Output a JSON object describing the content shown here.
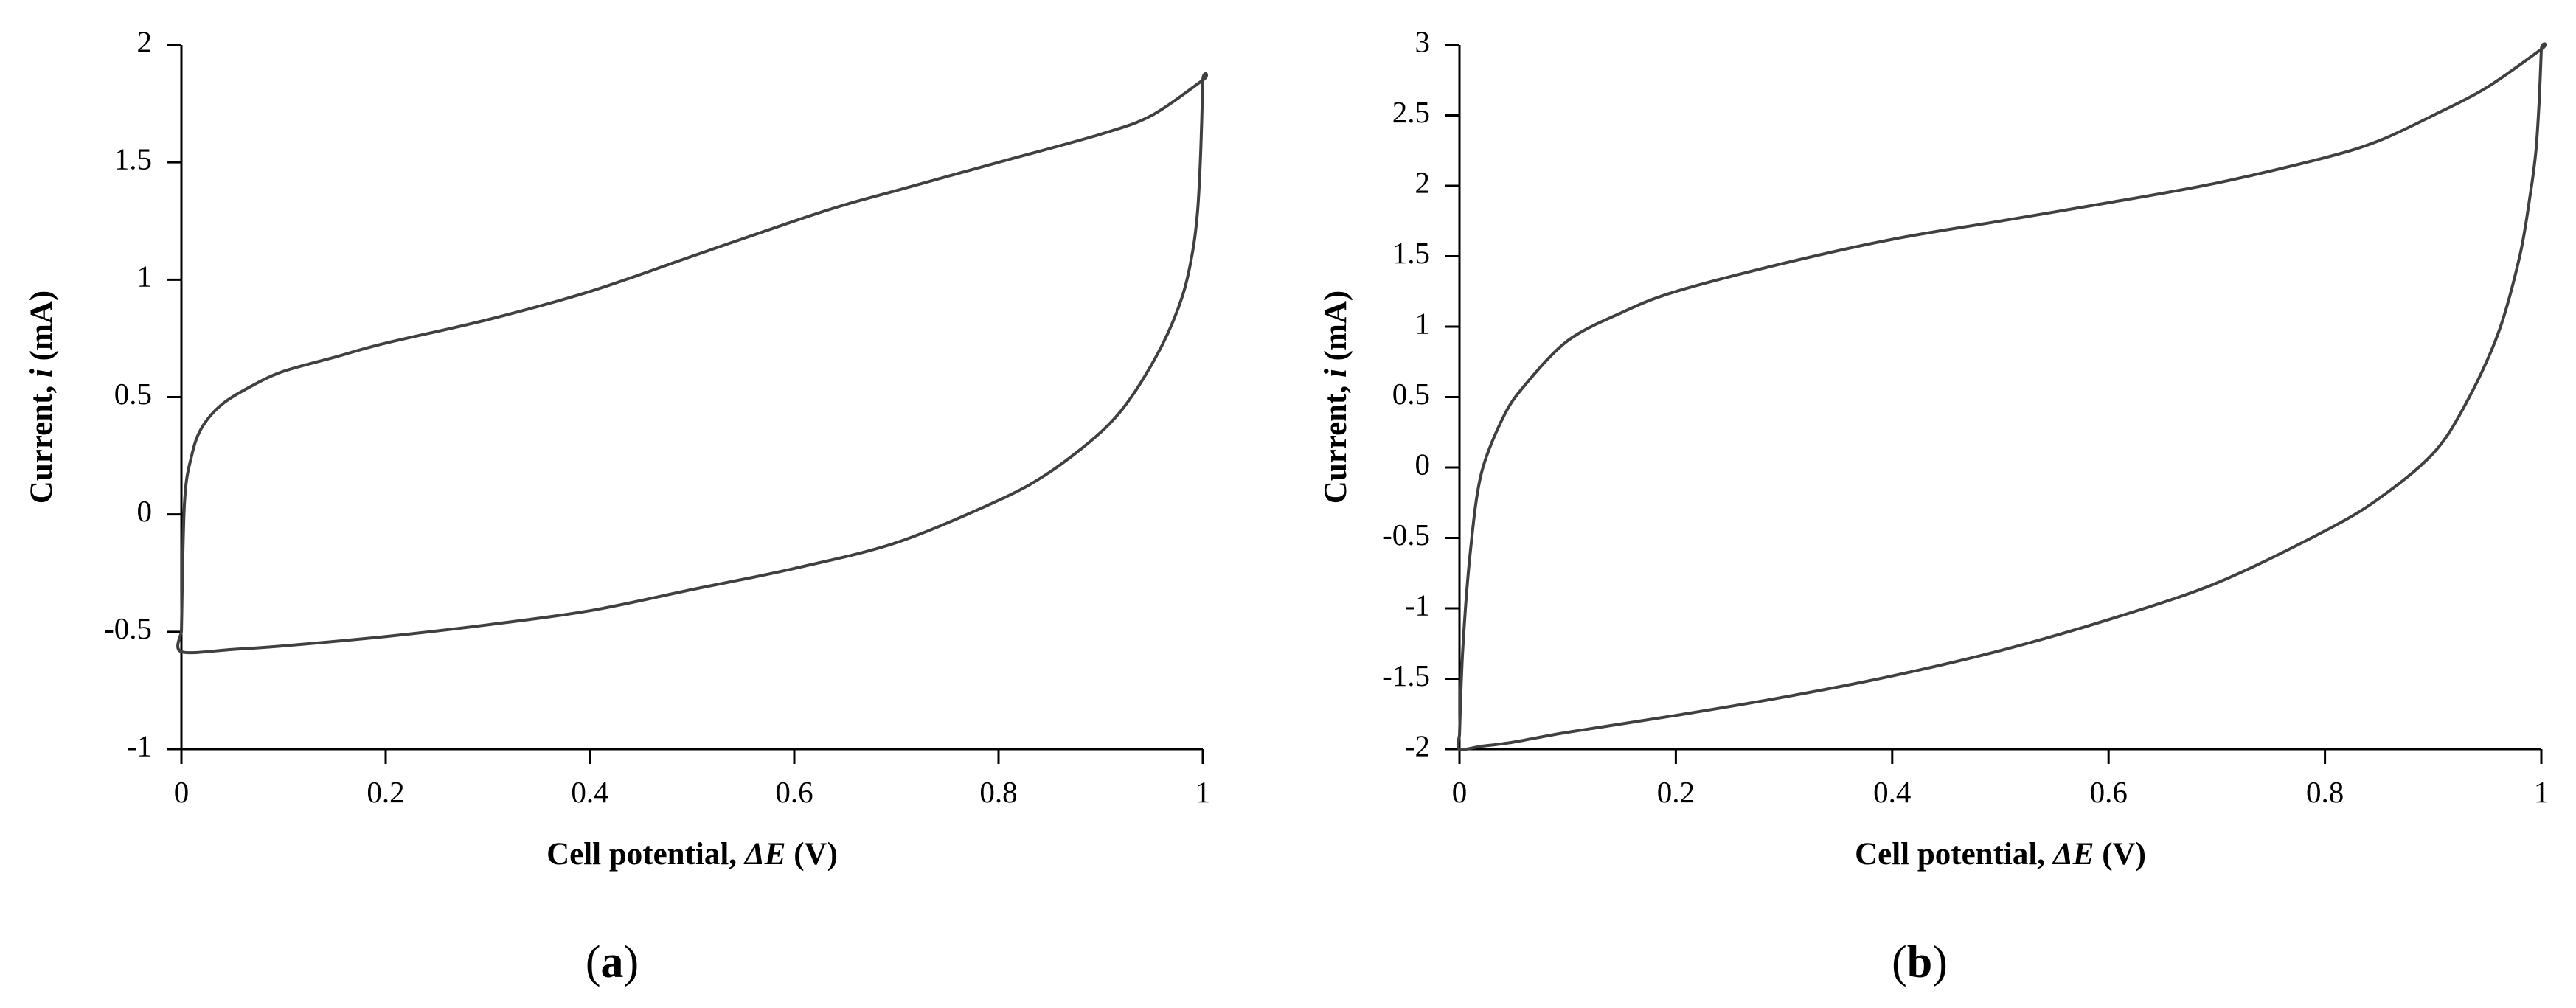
{
  "colors": {
    "curve": "#404040",
    "axis": "#000000",
    "background": "#ffffff"
  },
  "chart_data": [
    {
      "type": "line",
      "panel_label": "(a)",
      "xlabel": "Cell potential, ΔE (V)",
      "ylabel": "Current, i (mA)",
      "xlim": [
        0,
        1
      ],
      "ylim": [
        -1,
        2
      ],
      "xticks": [
        "0",
        "0.2",
        "0.4",
        "0.6",
        "0.8",
        "1"
      ],
      "yticks": [
        "-1",
        "-0.5",
        "0",
        "0.5",
        "1",
        "1.5",
        "2"
      ],
      "grid": false,
      "legend": false,
      "series": [
        {
          "x": [
            0,
            0.003,
            0.01,
            0.02,
            0.04,
            0.07,
            0.1,
            0.15,
            0.2,
            0.3,
            0.4,
            0.5,
            0.6,
            0.65,
            0.7,
            0.8,
            0.9,
            0.95,
            1.0,
            1.0,
            0.998,
            0.995,
            0.99,
            0.98,
            0.96,
            0.93,
            0.9,
            0.85,
            0.8,
            0.7,
            0.6,
            0.5,
            0.4,
            0.3,
            0.2,
            0.1,
            0.05,
            0.0,
            0.0
          ],
          "y": [
            -0.5,
            0.05,
            0.25,
            0.37,
            0.47,
            0.55,
            0.61,
            0.67,
            0.73,
            0.83,
            0.95,
            1.1,
            1.25,
            1.32,
            1.38,
            1.5,
            1.62,
            1.7,
            1.85,
            1.85,
            1.55,
            1.3,
            1.12,
            0.93,
            0.72,
            0.5,
            0.35,
            0.18,
            0.06,
            -0.12,
            -0.23,
            -0.32,
            -0.41,
            -0.47,
            -0.52,
            -0.56,
            -0.575,
            -0.585,
            -0.5
          ]
        }
      ]
    },
    {
      "type": "line",
      "panel_label": "(b)",
      "xlabel": "Cell potential, ΔE (V)",
      "ylabel": "Current, i (mA)",
      "xlim": [
        0,
        1
      ],
      "ylim": [
        -2,
        3
      ],
      "xticks": [
        "0",
        "0.2",
        "0.4",
        "0.6",
        "0.8",
        "1"
      ],
      "yticks": [
        "-2",
        "-1.5",
        "-1",
        "-0.5",
        "0",
        "0.5",
        "1",
        "1.5",
        "2",
        "2.5",
        "3"
      ],
      "grid": false,
      "legend": false,
      "series": [
        {
          "x": [
            0,
            0.003,
            0.01,
            0.02,
            0.04,
            0.06,
            0.1,
            0.15,
            0.2,
            0.3,
            0.4,
            0.5,
            0.6,
            0.7,
            0.8,
            0.85,
            0.9,
            0.95,
            1.0,
            1.0,
            0.998,
            0.995,
            0.99,
            0.98,
            0.96,
            0.93,
            0.9,
            0.85,
            0.8,
            0.7,
            0.6,
            0.5,
            0.4,
            0.3,
            0.2,
            0.1,
            0.05,
            0.02,
            0.0,
            0.0
          ],
          "y": [
            -1.9,
            -1.3,
            -0.6,
            -0.05,
            0.35,
            0.58,
            0.9,
            1.1,
            1.25,
            1.45,
            1.62,
            1.75,
            1.88,
            2.02,
            2.2,
            2.32,
            2.5,
            2.7,
            2.97,
            2.97,
            2.6,
            2.25,
            1.95,
            1.5,
            0.95,
            0.45,
            0.1,
            -0.22,
            -0.45,
            -0.82,
            -1.08,
            -1.3,
            -1.48,
            -1.63,
            -1.76,
            -1.88,
            -1.95,
            -1.98,
            -2.0,
            -1.9
          ]
        }
      ]
    }
  ]
}
